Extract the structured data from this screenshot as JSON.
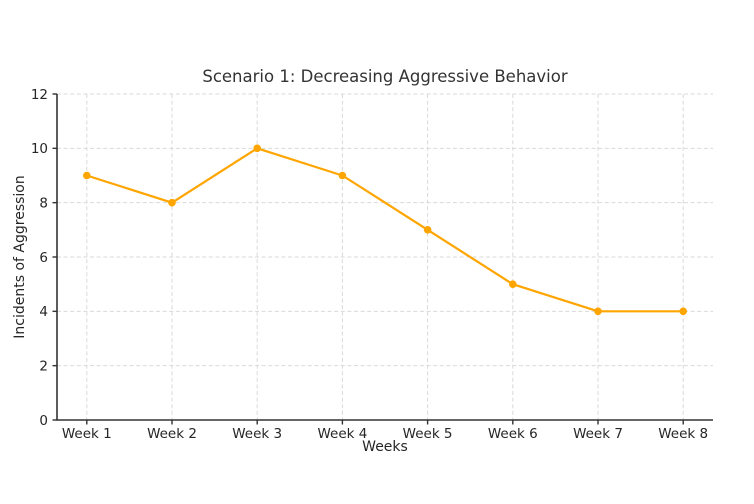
{
  "chart_data": {
    "type": "line",
    "title": "Scenario 1: Decreasing Aggressive Behavior",
    "xlabel": "Weeks",
    "ylabel": "Incidents of Aggression",
    "categories": [
      "Week 1",
      "Week 2",
      "Week 3",
      "Week 4",
      "Week 5",
      "Week 6",
      "Week 7",
      "Week 8"
    ],
    "values": [
      9,
      8,
      10,
      9,
      7,
      5,
      4,
      4
    ],
    "ylim": [
      0,
      12
    ],
    "yticks": [
      0,
      2,
      4,
      6,
      8,
      10,
      12
    ],
    "grid": "dashed",
    "legend": "none",
    "colors": {
      "line": "#FFA500",
      "marker": "#FFA500",
      "grid": "#D9D9D9",
      "axis": "#333333",
      "tick_text": "#262626",
      "title_text": "#333333",
      "background": "#FFFFFF"
    }
  }
}
